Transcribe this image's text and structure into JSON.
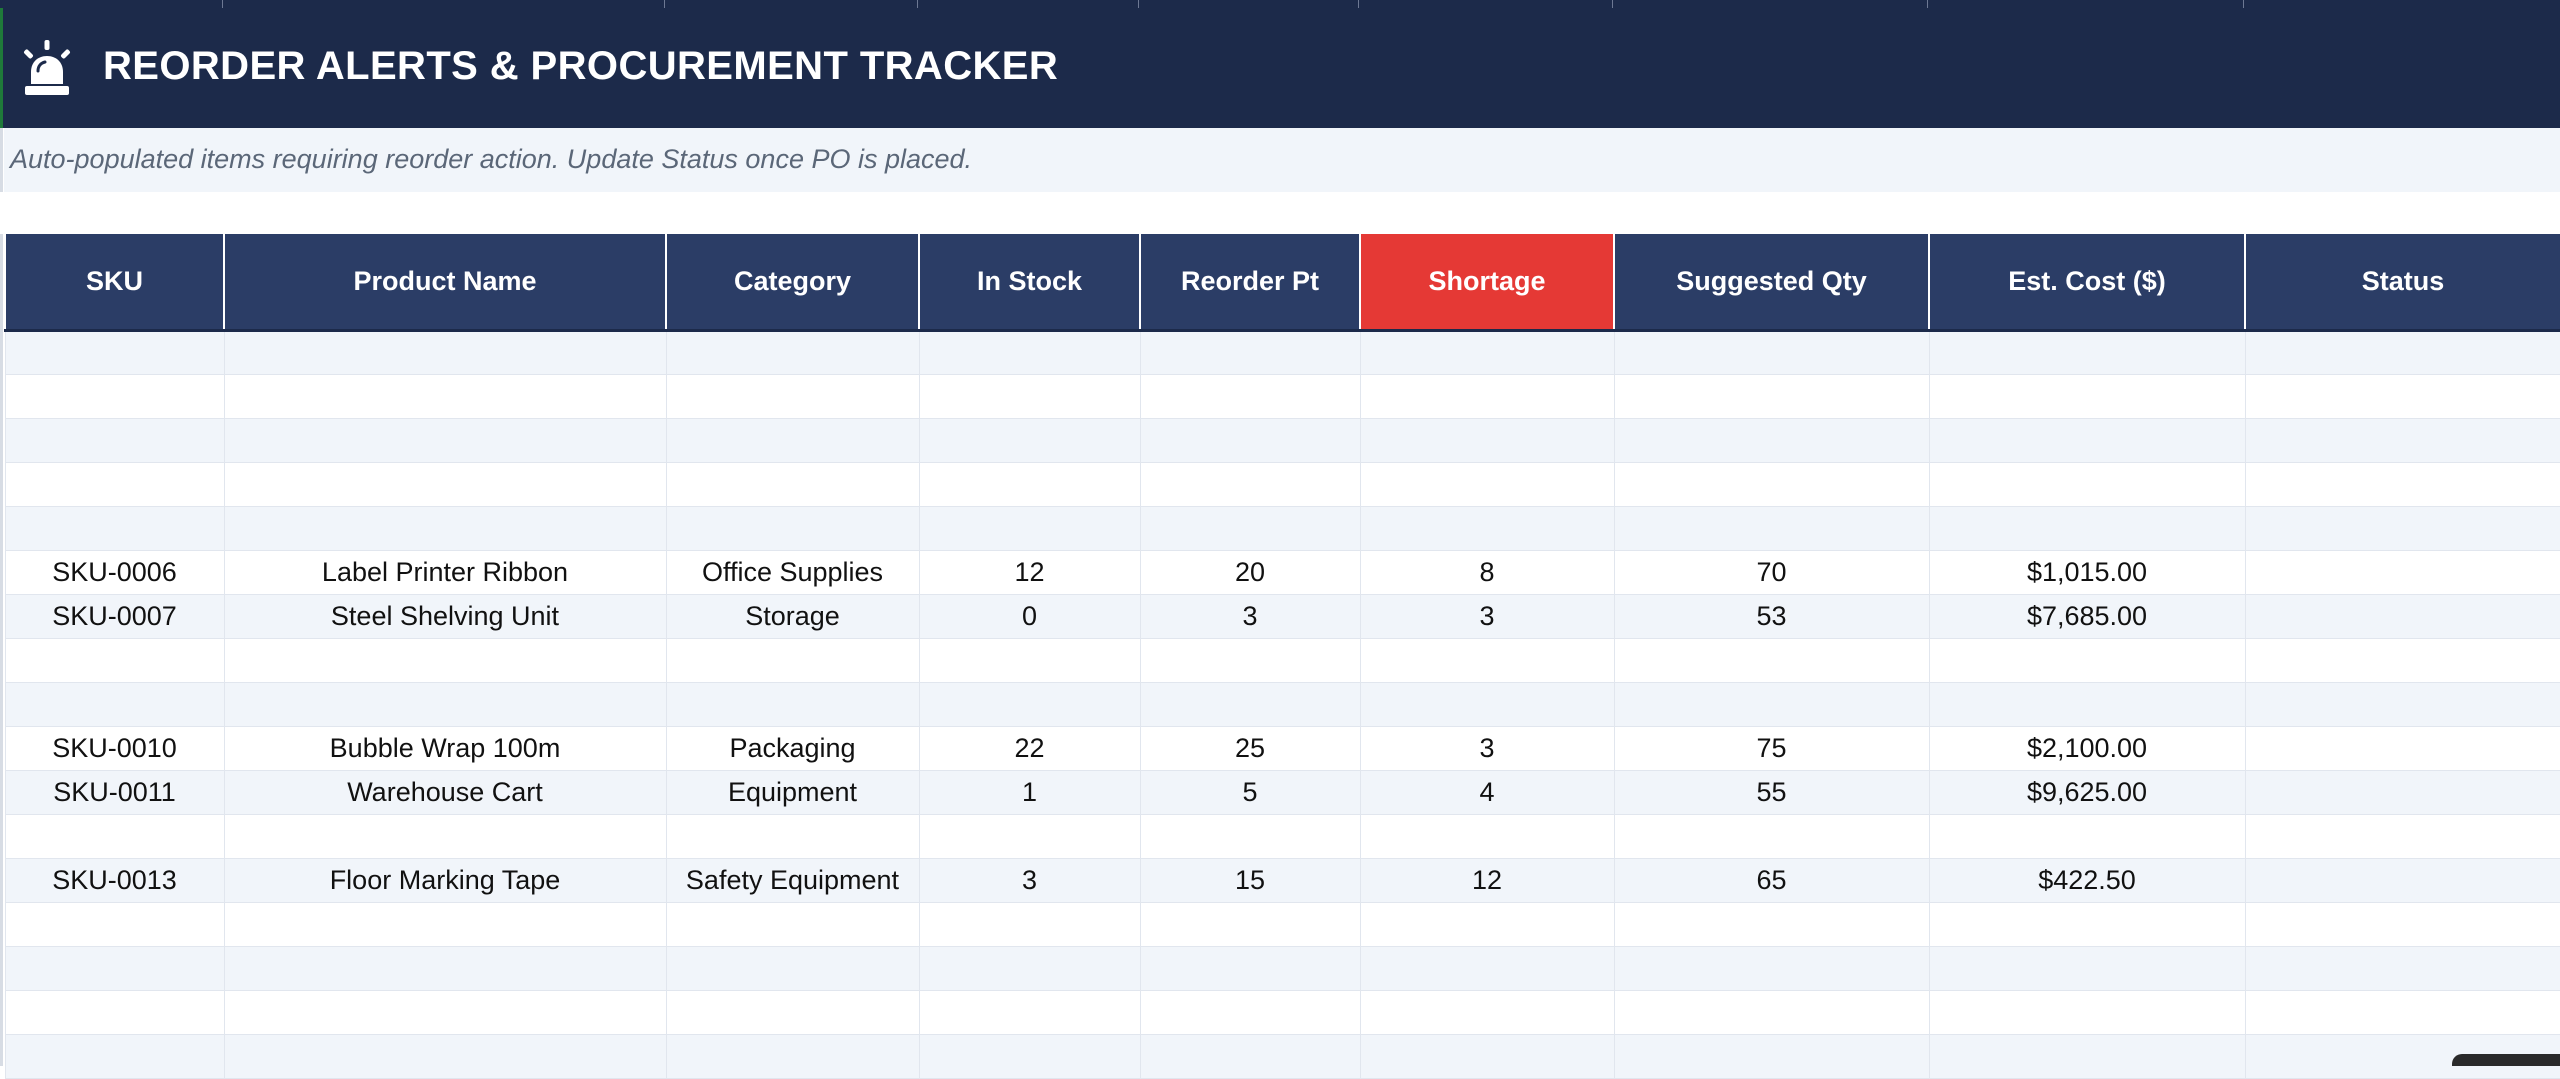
{
  "header": {
    "title": "REORDER ALERTS & PROCUREMENT TRACKER",
    "subtitle": "Auto-populated items requiring reorder action.  Update Status once PO is placed.",
    "icon": "alarm-bell-icon"
  },
  "colors": {
    "header_bg": "#1c2a4a",
    "column_header_bg": "#2b3d66",
    "alert_header_bg": "#e53935",
    "band_row_bg": "#f1f5fa"
  },
  "table": {
    "columns": [
      "SKU",
      "Product Name",
      "Category",
      "In Stock",
      "Reorder Pt",
      "Shortage",
      "Suggested Qty",
      "Est. Cost ($)",
      "Status"
    ],
    "highlighted_column": "Shortage",
    "rows": [
      [
        "",
        "",
        "",
        "",
        "",
        "",
        "",
        "",
        ""
      ],
      [
        "",
        "",
        "",
        "",
        "",
        "",
        "",
        "",
        ""
      ],
      [
        "",
        "",
        "",
        "",
        "",
        "",
        "",
        "",
        ""
      ],
      [
        "",
        "",
        "",
        "",
        "",
        "",
        "",
        "",
        ""
      ],
      [
        "",
        "",
        "",
        "",
        "",
        "",
        "",
        "",
        ""
      ],
      [
        "SKU-0006",
        "Label Printer Ribbon",
        "Office Supplies",
        "12",
        "20",
        "8",
        "70",
        "$1,015.00",
        ""
      ],
      [
        "SKU-0007",
        "Steel Shelving Unit",
        "Storage",
        "0",
        "3",
        "3",
        "53",
        "$7,685.00",
        ""
      ],
      [
        "",
        "",
        "",
        "",
        "",
        "",
        "",
        "",
        ""
      ],
      [
        "",
        "",
        "",
        "",
        "",
        "",
        "",
        "",
        ""
      ],
      [
        "SKU-0010",
        "Bubble Wrap 100m",
        "Packaging",
        "22",
        "25",
        "3",
        "75",
        "$2,100.00",
        ""
      ],
      [
        "SKU-0011",
        "Warehouse Cart",
        "Equipment",
        "1",
        "5",
        "4",
        "55",
        "$9,625.00",
        ""
      ],
      [
        "",
        "",
        "",
        "",
        "",
        "",
        "",
        "",
        ""
      ],
      [
        "SKU-0013",
        "Floor Marking Tape",
        "Safety Equipment",
        "3",
        "15",
        "12",
        "65",
        "$422.50",
        ""
      ],
      [
        "",
        "",
        "",
        "",
        "",
        "",
        "",
        "",
        ""
      ],
      [
        "",
        "",
        "",
        "",
        "",
        "",
        "",
        "",
        ""
      ],
      [
        "",
        "",
        "",
        "",
        "",
        "",
        "",
        "",
        ""
      ],
      [
        "",
        "",
        "",
        "",
        "",
        "",
        "",
        "",
        ""
      ]
    ]
  }
}
